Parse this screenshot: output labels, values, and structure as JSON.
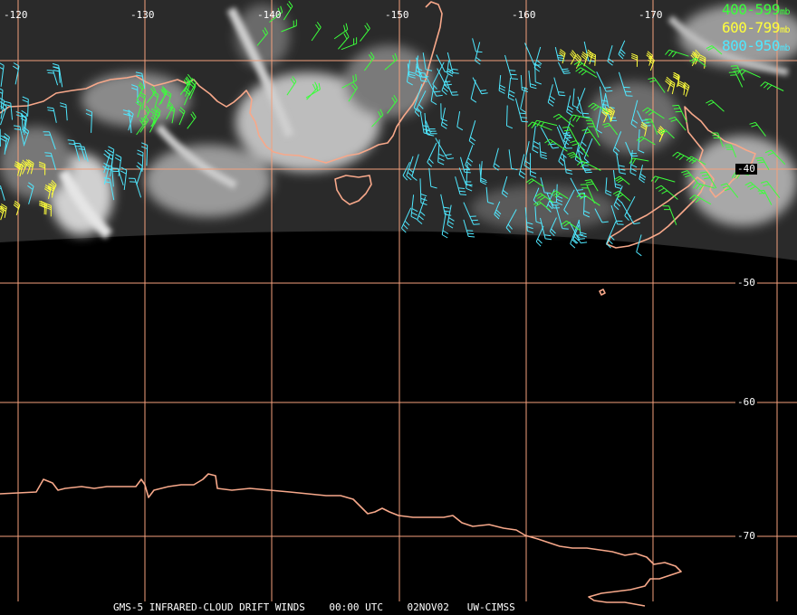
{
  "lon_labels": [
    {
      "text": "-120",
      "value": -120
    },
    {
      "text": "-130",
      "value": -130
    },
    {
      "text": "-140",
      "value": -140
    },
    {
      "text": "-150",
      "value": -150
    },
    {
      "text": "-160",
      "value": -160
    },
    {
      "text": "-170",
      "value": -170
    }
  ],
  "lat_labels": [
    {
      "text": "-40",
      "value": -40
    },
    {
      "text": "-50",
      "value": -50
    },
    {
      "text": "-60",
      "value": -60
    },
    {
      "text": "-70",
      "value": -70
    }
  ],
  "legend": [
    {
      "range": "400-599",
      "unit": "mb",
      "color": "#3bff3b"
    },
    {
      "range": "600-799",
      "unit": "mb",
      "color": "#ffff3b"
    },
    {
      "range": "800-950",
      "unit": "mb",
      "color": "#4fe8ff"
    }
  ],
  "caption": {
    "product": "GMS-5 INFRARED-CLOUD DRIFT WINDS",
    "time": "00:00 UTC",
    "date": "02NOV02",
    "source": "UW-CIMSS"
  },
  "colors": {
    "grid": "#f3a07c",
    "coast": "#f7a88a",
    "background": "#000000"
  }
}
